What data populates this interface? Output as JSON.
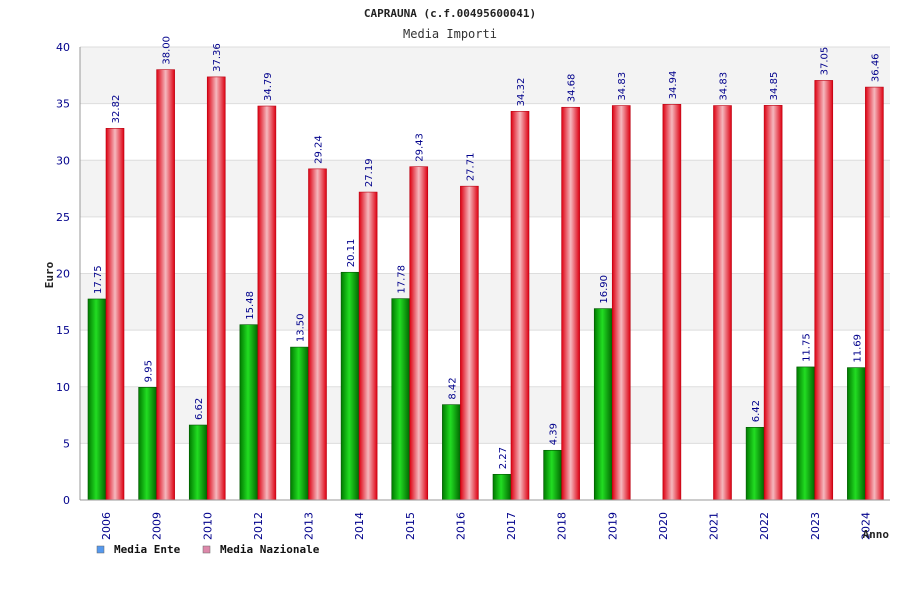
{
  "chart_data": {
    "type": "bar",
    "title": "CAPRAUNA (c.f.00495600041)",
    "subtitle": "Media Importi",
    "xlabel": "Anno",
    "ylabel": "Euro",
    "ylim": [
      0,
      40
    ],
    "yticks": [
      0,
      5,
      10,
      15,
      20,
      25,
      30,
      35,
      40
    ],
    "grid": true,
    "legend_position": "bottom-left",
    "categories": [
      "2006",
      "2009",
      "2010",
      "2012",
      "2013",
      "2014",
      "2015",
      "2016",
      "2017",
      "2018",
      "2019",
      "2020",
      "2021",
      "2022",
      "2023",
      "2024"
    ],
    "series": [
      {
        "name": "Media Ente",
        "color": "#00aa00",
        "legend_color": "#5599ee",
        "values": [
          17.75,
          9.95,
          6.62,
          15.48,
          13.5,
          20.11,
          17.78,
          8.42,
          2.27,
          4.39,
          16.9,
          null,
          null,
          6.42,
          11.75,
          11.69
        ],
        "labels": [
          "17.75",
          "9.95",
          "6.62",
          "15.48",
          "13.50",
          "20.11",
          "17.78",
          "8.42",
          "2.27",
          "4.39",
          "16.90",
          "",
          "",
          "6.42",
          "11.75",
          "11.69"
        ]
      },
      {
        "name": "Media Nazionale",
        "color": "#ee1122",
        "legend_color": "#dd88aa",
        "values": [
          32.82,
          38.0,
          37.36,
          34.79,
          29.24,
          27.19,
          29.43,
          27.71,
          34.32,
          34.68,
          34.83,
          34.94,
          34.83,
          34.85,
          37.05,
          36.46
        ],
        "labels": [
          "32.82",
          "38.00",
          "37.36",
          "34.79",
          "29.24",
          "27.19",
          "29.43",
          "27.71",
          "34.32",
          "34.68",
          "34.83",
          "34.94",
          "34.83",
          "34.85",
          "37.05",
          "36.46"
        ]
      }
    ]
  }
}
